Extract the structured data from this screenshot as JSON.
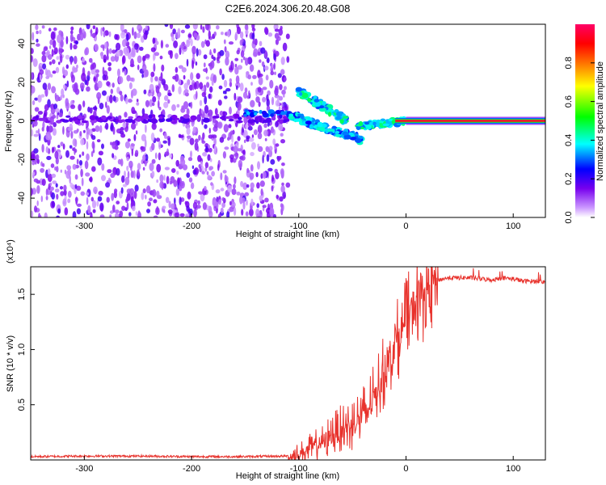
{
  "title": "C2E6.2024.306.20.48.G08",
  "chart_data": [
    {
      "type": "heatmap",
      "title": "C2E6.2024.306.20.48.G08",
      "xlabel": "Height of straight line (km)",
      "ylabel": "Frequency (Hz)",
      "xlim": [
        -350,
        130
      ],
      "ylim": [
        -50,
        50
      ],
      "xticks": [
        -300,
        -200,
        -100,
        0,
        100
      ],
      "yticks": [
        -40,
        -20,
        0,
        20,
        40
      ],
      "colorbar": {
        "label": "Normalized spectral amplitude",
        "range": [
          0,
          1
        ],
        "ticks": [
          "0.0",
          "0.2",
          "0.4",
          "0.6",
          "0.8"
        ],
        "colors": [
          "#ffffff",
          "#cc99ff",
          "#7700ee",
          "#0000ff",
          "#00ffff",
          "#00ff00",
          "#ffff00",
          "#ff8800",
          "#ff0000",
          "#ff0066"
        ]
      },
      "features": [
        {
          "x_range": [
            -350,
            -110
          ],
          "freq_range": [
            -50,
            50
          ],
          "amplitude": 0.1,
          "description_visible": false
        },
        {
          "x_range": [
            -110,
            -40
          ],
          "freq_start": 3,
          "freq_end": -10,
          "amplitude": 0.35
        },
        {
          "x_range": [
            -100,
            -55
          ],
          "freq_start": 15,
          "freq_end": 0,
          "amplitude": 0.4
        },
        {
          "x_range": [
            -45,
            0
          ],
          "freq_start": -3,
          "freq_end": 0,
          "amplitude": 0.4
        },
        {
          "x_range": [
            0,
            130
          ],
          "freq": 0,
          "amplitude": 0.95
        }
      ]
    },
    {
      "type": "line",
      "xlabel": "Height of straight line (km)",
      "ylabel": "SNR (10 * v/v)",
      "y_multiplier": "(x10⁴)",
      "xlim": [
        -350,
        130
      ],
      "ylim": [
        0,
        1.75
      ],
      "xticks": [
        -300,
        -200,
        -100,
        0,
        100
      ],
      "yticks": [
        "0.5",
        "1.0",
        "1.5"
      ],
      "color": "#e8322c",
      "series": [
        {
          "x": [
            -350,
            -300,
            -250,
            -200,
            -150,
            -110,
            -100,
            -90,
            -80,
            -70,
            -60,
            -50,
            -40,
            -30,
            -25,
            -20,
            -15,
            -10,
            -5,
            0,
            5,
            10,
            15,
            20,
            25,
            30,
            40,
            50,
            60,
            70,
            80,
            90,
            100,
            110,
            120,
            130
          ],
          "y": [
            0.03,
            0.035,
            0.035,
            0.03,
            0.03,
            0.035,
            0.05,
            0.1,
            0.15,
            0.22,
            0.28,
            0.32,
            0.4,
            0.55,
            0.7,
            0.8,
            0.95,
            1.05,
            1.15,
            1.25,
            1.35,
            1.45,
            1.5,
            1.55,
            1.6,
            1.63,
            1.65,
            1.65,
            1.65,
            1.64,
            1.63,
            1.65,
            1.64,
            1.62,
            1.62,
            1.61
          ]
        }
      ]
    }
  ]
}
